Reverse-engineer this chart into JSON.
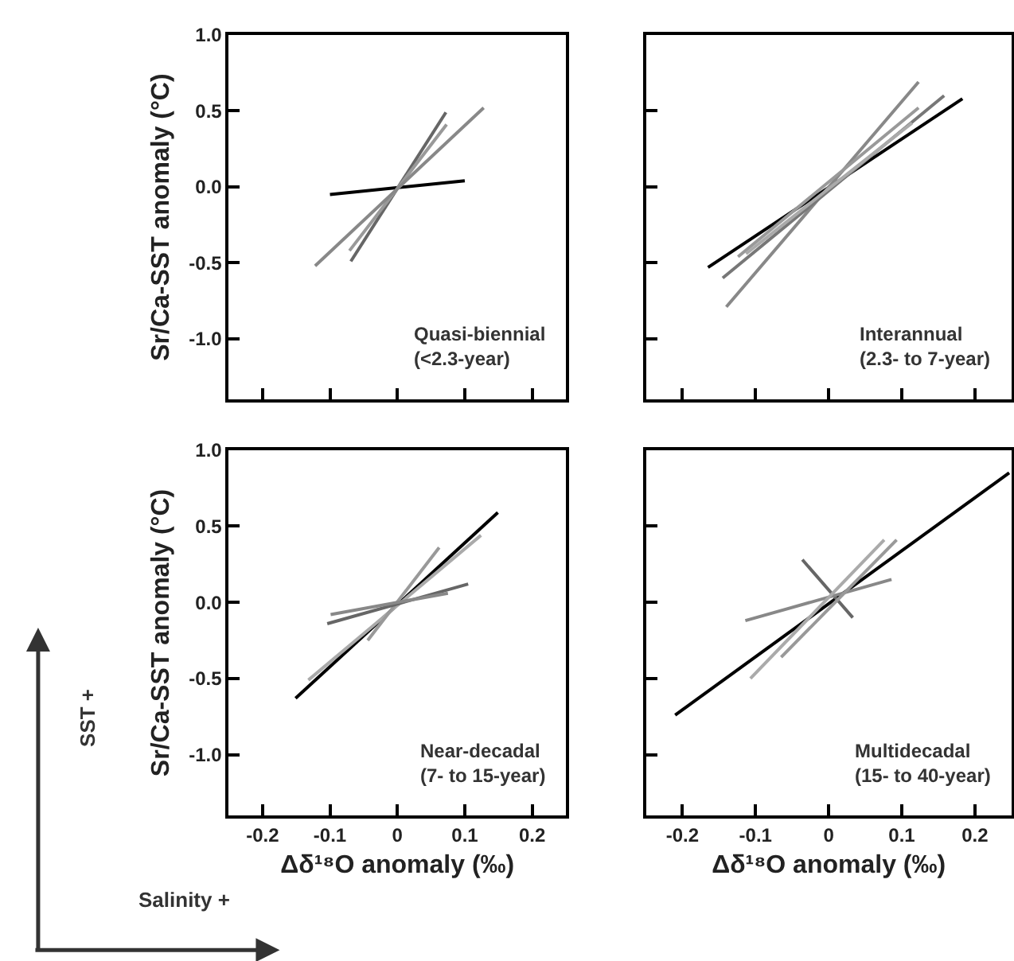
{
  "chart_data": [
    {
      "type": "line",
      "xlim": [
        -0.25,
        0.25
      ],
      "ylim": [
        -1.4,
        1.0
      ],
      "xticks": [
        {
          "value": -0.2,
          "label": null
        },
        {
          "value": -0.1,
          "label": null
        },
        {
          "value": 0,
          "label": null
        },
        {
          "value": 0.1,
          "label": null
        },
        {
          "value": 0.2,
          "label": null
        }
      ],
      "yticks": [
        {
          "value": -1.0,
          "label": "-1.0"
        },
        {
          "value": -0.5,
          "label": "-0.5"
        },
        {
          "value": 0,
          "label": "0.0"
        },
        {
          "value": 0.5,
          "label": "0.5"
        },
        {
          "value": 1.0,
          "label": "1.0"
        }
      ],
      "tick_labels": "y",
      "ylabel": "Sr/Ca-SST anomaly (°C)",
      "marker": "none",
      "line_style": "solid",
      "annotations": [
        "Quasi-biennial\n(<2.3-year)"
      ],
      "series": [
        {
          "color": "#000000",
          "x": [
            -0.1,
            0.1
          ],
          "values": [
            -0.05,
            0.04
          ]
        },
        {
          "color": "#666666",
          "x": [
            -0.069,
            0.072
          ],
          "values": [
            -0.49,
            0.49
          ]
        },
        {
          "color": "#999999",
          "x": [
            -0.071,
            0.073
          ],
          "values": [
            -0.42,
            0.41
          ]
        },
        {
          "color": "#888888",
          "x": [
            -0.122,
            0.128
          ],
          "values": [
            -0.52,
            0.52
          ]
        }
      ]
    },
    {
      "type": "line",
      "xlim": [
        -0.25,
        0.25
      ],
      "ylim": [
        -1.4,
        1.0
      ],
      "xticks": [
        {
          "value": -0.2,
          "label": null
        },
        {
          "value": -0.1,
          "label": null
        },
        {
          "value": 0,
          "label": null
        },
        {
          "value": 0.1,
          "label": null
        },
        {
          "value": 0.2,
          "label": null
        }
      ],
      "yticks": [
        {
          "value": -1.0,
          "label": null
        },
        {
          "value": -0.5,
          "label": null
        },
        {
          "value": 0,
          "label": null
        },
        {
          "value": 0.5,
          "label": null
        },
        {
          "value": 1.0,
          "label": null
        }
      ],
      "tick_labels": false,
      "marker": "none",
      "line_style": "solid",
      "annotations": [
        "Interannual\n(2.3- to 7-year)"
      ],
      "series": [
        {
          "color": "#000000",
          "x": [
            -0.165,
            0.183
          ],
          "values": [
            -0.53,
            0.58
          ]
        },
        {
          "color": "#888888",
          "x": [
            -0.14,
            0.123
          ],
          "values": [
            -0.79,
            0.69
          ]
        },
        {
          "color": "#777777",
          "x": [
            -0.145,
            0.158
          ],
          "values": [
            -0.6,
            0.6
          ]
        },
        {
          "color": "#999999",
          "x": [
            -0.124,
            0.123
          ],
          "values": [
            -0.46,
            0.52
          ]
        },
        {
          "color": "#aaaaaa",
          "x": [
            -0.113,
            0.114
          ],
          "values": [
            -0.44,
            0.42
          ]
        }
      ]
    },
    {
      "type": "line",
      "xlim": [
        -0.25,
        0.25
      ],
      "ylim": [
        -1.4,
        1.0
      ],
      "xticks": [
        -0.2,
        -0.1,
        0,
        0.1,
        0.2
      ],
      "yticks": [
        {
          "value": -1.0,
          "label": "-1.0"
        },
        {
          "value": -0.5,
          "label": "-0.5"
        },
        {
          "value": 0,
          "label": "0.0"
        },
        {
          "value": 0.5,
          "label": "0.5"
        },
        {
          "value": 1.0,
          "label": "1.0"
        }
      ],
      "xlabel": "Δδ¹⁸O anomaly (‰)",
      "ylabel": "Sr/Ca-SST anomaly (°C)",
      "marker": "none",
      "line_style": "solid",
      "annotations": [
        "Near-decadal\n(7- to 15-year)",
        "SST +",
        "Salinity +"
      ],
      "series": [
        {
          "color": "#000000",
          "x": [
            -0.151,
            0.149
          ],
          "values": [
            -0.63,
            0.59
          ]
        },
        {
          "color": "#aaaaaa",
          "x": [
            -0.132,
            0.124
          ],
          "values": [
            -0.51,
            0.44
          ]
        },
        {
          "color": "#999999",
          "x": [
            -0.044,
            0.062
          ],
          "values": [
            -0.25,
            0.36
          ]
        },
        {
          "color": "#666666",
          "x": [
            -0.104,
            0.105
          ],
          "values": [
            -0.14,
            0.12
          ]
        },
        {
          "color": "#888888",
          "x": [
            -0.099,
            0.075
          ],
          "values": [
            -0.08,
            0.06
          ]
        }
      ]
    },
    {
      "type": "line",
      "xlim": [
        -0.25,
        0.25
      ],
      "ylim": [
        -1.4,
        1.0
      ],
      "xticks": [
        -0.2,
        -0.1,
        0,
        0.1,
        0.2
      ],
      "yticks": [
        {
          "value": -1.0,
          "label": null
        },
        {
          "value": -0.5,
          "label": null
        },
        {
          "value": 0,
          "label": null
        },
        {
          "value": 0.5,
          "label": null
        },
        {
          "value": 1.0,
          "label": null
        }
      ],
      "tick_labels": "x",
      "xlabel": "Δδ¹⁸O anomaly (‰)",
      "marker": "none",
      "line_style": "solid",
      "annotations": [
        "Multidecadal\n(15- to 40-year)"
      ],
      "series": [
        {
          "color": "#000000",
          "x": [
            -0.21,
            0.247
          ],
          "values": [
            -0.74,
            0.85
          ]
        },
        {
          "color": "#666666",
          "x": [
            -0.036,
            0.033
          ],
          "values": [
            0.28,
            -0.1
          ]
        },
        {
          "color": "#888888",
          "x": [
            -0.114,
            0.086
          ],
          "values": [
            -0.12,
            0.15
          ]
        },
        {
          "color": "#aaaaaa",
          "x": [
            -0.107,
            0.076
          ],
          "values": [
            -0.5,
            0.41
          ]
        },
        {
          "color": "#999999",
          "x": [
            -0.065,
            0.093
          ],
          "values": [
            -0.36,
            0.41
          ]
        }
      ]
    }
  ]
}
